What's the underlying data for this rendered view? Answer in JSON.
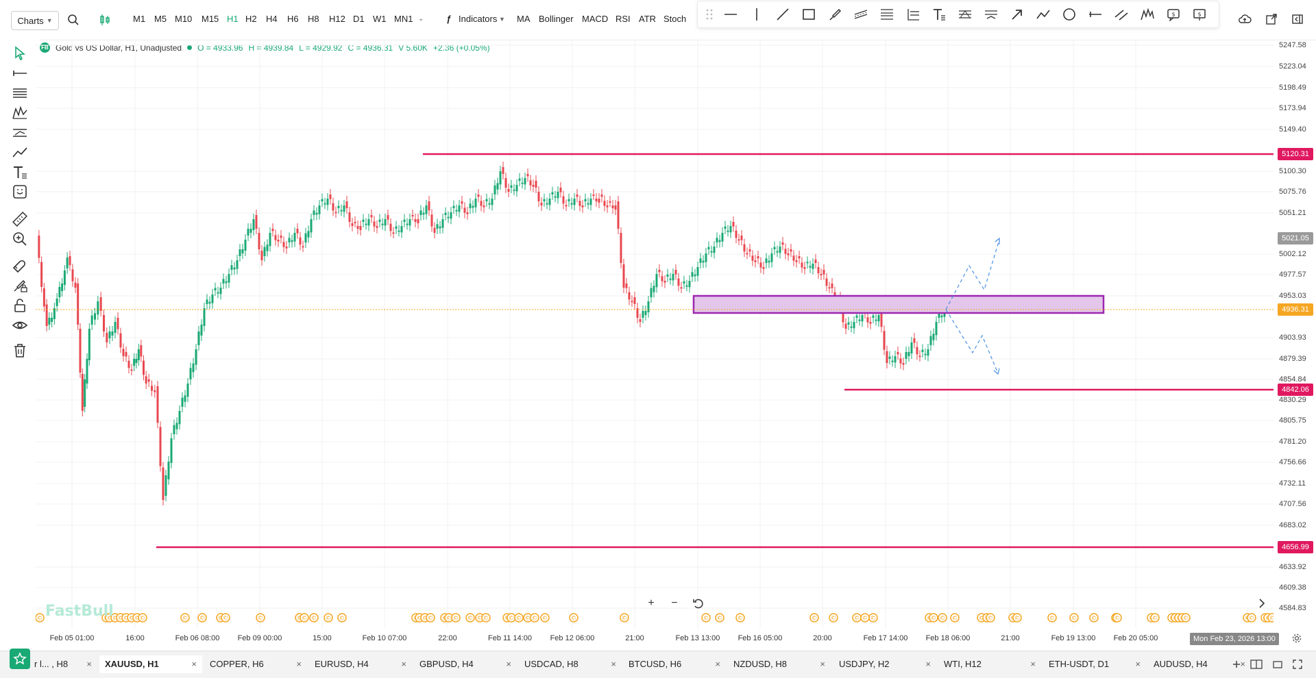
{
  "toolbar": {
    "charts_label": "Charts",
    "timeframes": [
      "M1",
      "M5",
      "M10",
      "M15",
      "H1",
      "H2",
      "H4",
      "H6",
      "H8",
      "H12",
      "D1",
      "W1",
      "MN1"
    ],
    "active_timeframe": "H1",
    "indicators_label": "Indicators",
    "quick_indicators": [
      "MA",
      "Bollinger",
      "MACD",
      "RSI",
      "ATR",
      "Stoch"
    ]
  },
  "chart": {
    "symbol_title": "Gold vs US Dollar, H1, Unadjusted",
    "logo_text": "FB",
    "open": "O = 4933.96",
    "high": "H = 4939.84",
    "low": "L = 4929.92",
    "close": "C = 4936.31",
    "volume": "V 5.60K",
    "change": "+2.36 (+0.05%)",
    "watermark": "FastBull",
    "colors": {
      "up": "#19a974",
      "down": "#e8474f",
      "hline": "#e0195f",
      "zone_border": "#9c27b0",
      "zone_fill": "#e3c6ea",
      "accent": "#19a974",
      "current": "#f5a623"
    }
  },
  "price_axis": {
    "labels": [
      "5247.58",
      "5223.04",
      "5198.49",
      "5173.94",
      "5149.40",
      "5100.30",
      "5075.76",
      "5051.21",
      "5002.12",
      "4977.57",
      "4953.03",
      "4903.93",
      "4879.39",
      "4854.84",
      "4830.29",
      "4805.75",
      "4781.20",
      "4756.66",
      "4732.11",
      "4707.56",
      "4683.02",
      "4633.92",
      "4609.38",
      "4584.83"
    ],
    "tags": {
      "resistance": "5120.31",
      "previous": "5021.05",
      "current": "4936.31",
      "support": "4842.06",
      "low": "4656.99"
    }
  },
  "time_axis": {
    "labels": [
      "Feb 05 01:00",
      "16:00",
      "Feb 06 08:00",
      "Feb 09 00:00",
      "15:00",
      "Feb 10 07:00",
      "22:00",
      "Feb 11 14:00",
      "Feb 12 06:00",
      "21:00",
      "Feb 13 13:00",
      "Feb 16 05:00",
      "20:00",
      "Feb 17 14:00",
      "Feb 18 06:00",
      "21:00",
      "Feb 19 13:00",
      "Feb 20 05:00"
    ],
    "crosshair_date": "Mon Feb 23, 2026 13:00"
  },
  "bottom_tabs": [
    {
      "label": "r l... , H8",
      "active": false
    },
    {
      "label": "XAUUSD, H1",
      "active": true
    },
    {
      "label": "COPPER, H6",
      "active": false
    },
    {
      "label": "EURUSD, H4",
      "active": false
    },
    {
      "label": "GBPUSD, H4",
      "active": false
    },
    {
      "label": "USDCAD, H8",
      "active": false
    },
    {
      "label": "BTCUSD, H6",
      "active": false
    },
    {
      "label": "NZDUSD, H8",
      "active": false
    },
    {
      "label": "USDJPY, H2",
      "active": false
    },
    {
      "label": "WTI, H12",
      "active": false
    },
    {
      "label": "ETH-USDT, D1",
      "active": false
    },
    {
      "label": "AUDUSD, H4",
      "active": false
    }
  ],
  "icons": {
    "close": "×",
    "event_marker": "©"
  }
}
